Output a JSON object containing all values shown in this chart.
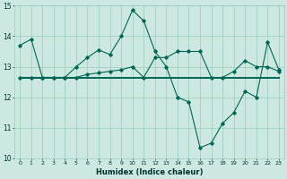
{
  "xlabel": "Humidex (Indice chaleur)",
  "bg_color": "#cce8e0",
  "grid_color": "#99ccbb",
  "line_color": "#006655",
  "x": [
    0,
    1,
    2,
    3,
    4,
    5,
    6,
    7,
    8,
    9,
    10,
    11,
    12,
    13,
    14,
    15,
    16,
    17,
    18,
    19,
    20,
    21,
    22,
    23
  ],
  "series1": [
    13.7,
    13.9,
    12.65,
    12.65,
    12.65,
    13.0,
    13.3,
    13.55,
    13.4,
    14.0,
    14.85,
    14.5,
    13.5,
    13.0,
    12.0,
    11.85,
    10.35,
    10.5,
    11.15,
    11.5,
    12.2,
    12.0,
    13.8,
    12.9
  ],
  "series2": [
    12.65,
    12.65,
    12.65,
    12.65,
    12.65,
    12.65,
    12.65,
    12.65,
    12.65,
    12.65,
    12.65,
    12.65,
    12.65,
    12.65,
    12.65,
    12.65,
    12.65,
    12.65,
    12.65,
    12.65,
    12.65,
    12.65,
    12.65,
    12.65
  ],
  "series3": [
    12.65,
    12.65,
    12.65,
    12.65,
    12.65,
    12.65,
    12.75,
    12.8,
    12.85,
    12.9,
    13.0,
    12.65,
    13.3,
    13.3,
    13.5,
    13.5,
    13.5,
    12.65,
    12.65,
    12.85,
    13.2,
    13.0,
    13.0,
    12.85
  ],
  "ylim": [
    10,
    15
  ],
  "yticks": [
    10,
    11,
    12,
    13,
    14,
    15
  ],
  "xticks": [
    0,
    1,
    2,
    3,
    4,
    5,
    6,
    7,
    8,
    9,
    10,
    11,
    12,
    13,
    14,
    15,
    16,
    17,
    18,
    19,
    20,
    21,
    22,
    23
  ]
}
